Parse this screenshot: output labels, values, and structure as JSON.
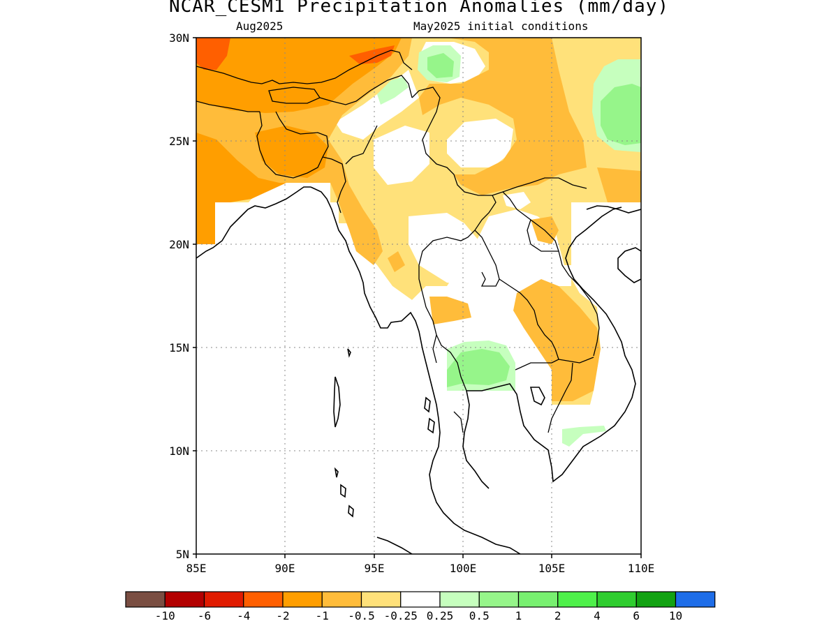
{
  "title": "NCAR_CESM1 Precipitation Anomalies (mm/day)",
  "subtitle_left": "Aug2025",
  "subtitle_right": "May2025 initial conditions",
  "axes": {
    "lat_ticks": [
      "30N",
      "25N",
      "20N",
      "15N",
      "10N",
      "5N"
    ],
    "lon_ticks": [
      "85E",
      "90E",
      "95E",
      "100E",
      "105E",
      "110E"
    ],
    "lat_range": [
      5,
      30
    ],
    "lon_range": [
      85,
      110
    ],
    "grid": "dotted"
  },
  "legend": {
    "colors": [
      "#7a4e42",
      "#b30000",
      "#e01b00",
      "#ff5f00",
      "#ff9e00",
      "#ffbc3a",
      "#ffe17a",
      "#ffffff",
      "#c6ffbe",
      "#96f58a",
      "#78f070",
      "#4ef04a",
      "#2fcd2f",
      "#12a212",
      "#1e6de8"
    ],
    "labels": [
      "-10",
      "-6",
      "-4",
      "-2",
      "-1",
      "-0.5",
      "-0.25",
      "0.25",
      "0.5",
      "1",
      "2",
      "4",
      "6",
      "10"
    ]
  },
  "chart_data": {
    "type": "heatmap",
    "title": "NCAR_CESM1 Precipitation Anomalies (mm/day)",
    "subtitle": [
      "Aug2025",
      "May2025 initial conditions"
    ],
    "xlabel": "",
    "ylabel": "",
    "xlim": [
      85,
      110
    ],
    "ylim": [
      5,
      30
    ],
    "regions": [
      {
        "value_range": "-2 to -1",
        "color": "#ff9e00",
        "area": "northwest: Nepal / north Bengal / Bangladesh, 85-92E, 22-30N"
      },
      {
        "value_range": "-4 to -2",
        "color": "#ff5f00",
        "area": "85-87E near 29-30N; 93-96E near 29.5N"
      },
      {
        "value_range": "-1 to -0.5",
        "color": "#ffbc3a",
        "area": "Myanmar 93-96E 20-25N; SE Asia 98-106E 13-18N; 102-105E 24-30N"
      },
      {
        "value_range": "-0.5 to -0.25",
        "color": "#ffe17a",
        "area": "broad band across Myanmar, Laos, Yunnan 93-110E 17-30N"
      },
      {
        "value_range": "0.25 to 1",
        "color": "#96f58a",
        "area": "98-102E 13-15N (Thailand); 107.5-110E 24-27N; 97-99E 28-29.5N"
      }
    ]
  }
}
